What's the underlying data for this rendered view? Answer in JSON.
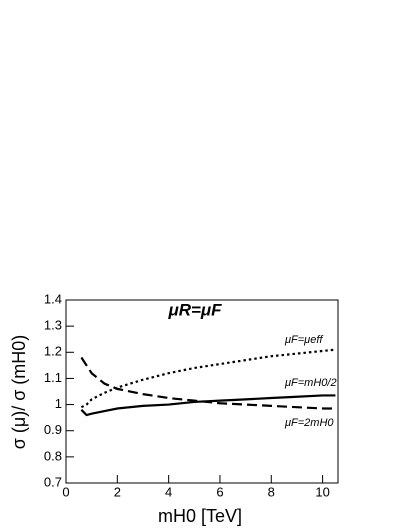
{
  "chart_data": {
    "type": "line",
    "title": "μR=μF",
    "x_label": "mH0 [TeV]",
    "y_label": "σ (μ)/ σ (mH0)",
    "x": [
      0.6,
      0.8,
      1,
      1.5,
      2,
      3,
      4,
      5,
      6,
      7,
      8,
      9,
      10,
      10.5
    ],
    "series": [
      {
        "name": "μF=μeff",
        "color": "#000000",
        "linestyle": "dotted",
        "values": [
          0.99,
          1.0,
          1.02,
          1.045,
          1.065,
          1.095,
          1.12,
          1.14,
          1.155,
          1.17,
          1.185,
          1.195,
          1.205,
          1.21
        ]
      },
      {
        "name": "μF=mH0/2",
        "color": "#000000",
        "linestyle": "solid",
        "values": [
          0.98,
          0.96,
          0.965,
          0.975,
          0.985,
          0.995,
          1.0,
          1.01,
          1.015,
          1.02,
          1.025,
          1.03,
          1.035,
          1.035
        ]
      },
      {
        "name": "μF=2mH0",
        "color": "#000000",
        "linestyle": "dashed",
        "values": [
          1.18,
          1.15,
          1.12,
          1.08,
          1.06,
          1.04,
          1.025,
          1.015,
          1.005,
          1.0,
          0.995,
          0.99,
          0.985,
          0.985
        ]
      }
    ],
    "xlim": [
      0,
      10.6
    ],
    "ylim": [
      0.7,
      1.4
    ],
    "xticks": [
      0,
      2,
      4,
      6,
      8,
      10
    ],
    "yticks": [
      0.7,
      0.8,
      0.9,
      1,
      1.1,
      1.2,
      1.3,
      1.4
    ],
    "grid": false
  }
}
